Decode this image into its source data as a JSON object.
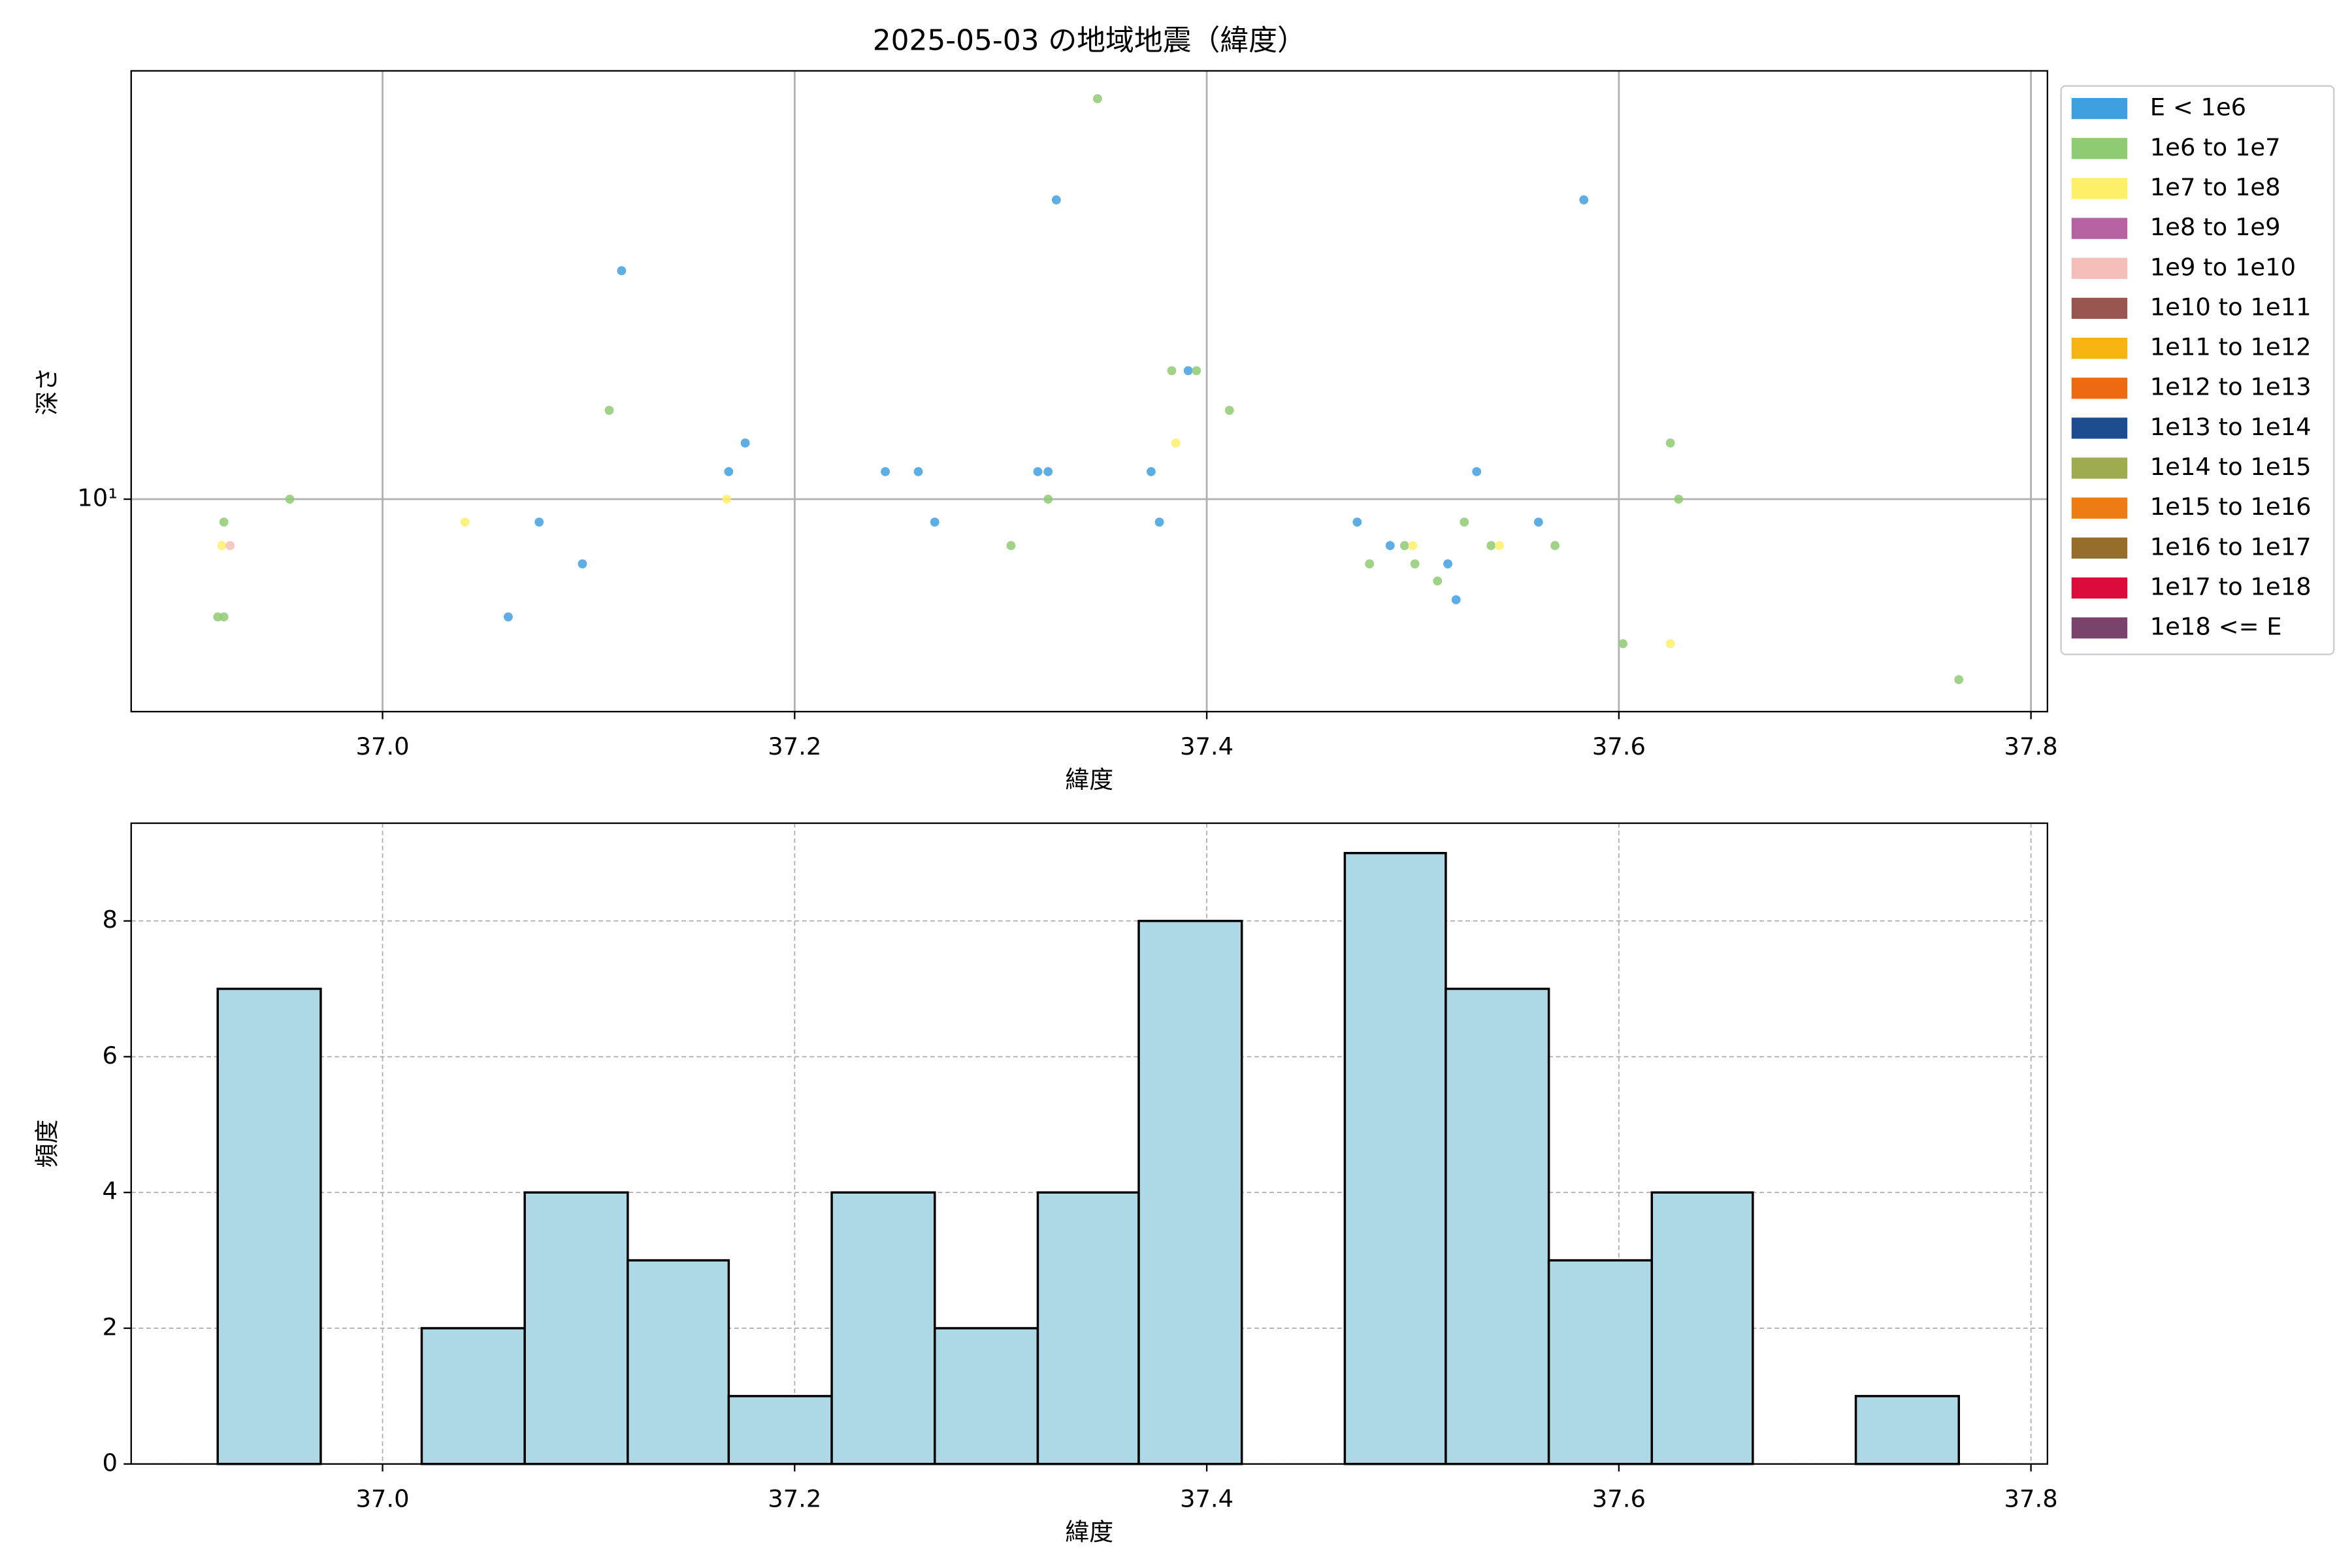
{
  "chart_data": [
    {
      "type": "scatter",
      "title": "2025-05-03 の地域地震（緯度）",
      "x_label": "緯度",
      "y_label": "深さ",
      "xlim": [
        36.878,
        37.808
      ],
      "xticks": [
        {
          "value": 37,
          "label": "37.0"
        },
        37.2,
        37.4,
        37.6,
        37.8
      ],
      "ylim": [
        3.4,
        88
      ],
      "yticks": [
        {
          "value": 10,
          "label": "10¹"
        }
      ],
      "yscale": "log",
      "grid": true,
      "grid_style": "solid",
      "series": [
        {
          "name": "E < 1e6",
          "color": "#3fa0e0",
          "x": [
            37.061,
            37.076,
            37.097,
            37.116,
            37.168,
            37.176,
            37.244,
            37.26,
            37.268,
            37.318,
            37.323,
            37.327,
            37.373,
            37.377,
            37.391,
            37.473,
            37.489,
            37.517,
            37.521,
            37.531,
            37.561,
            37.583
          ],
          "values": [
            5.5,
            8.9,
            7.2,
            31.9,
            11.5,
            13.3,
            11.5,
            11.5,
            8.9,
            11.5,
            11.5,
            45.7,
            11.5,
            8.9,
            19.2,
            8.9,
            7.9,
            7.2,
            6.0,
            11.5,
            8.9,
            45.7
          ]
        },
        {
          "name": "1e6 to 1e7",
          "color": "#8fcb72",
          "x": [
            36.92,
            36.923,
            36.923,
            36.955,
            37.11,
            37.305,
            37.323,
            37.347,
            37.383,
            37.395,
            37.411,
            37.479,
            37.496,
            37.501,
            37.512,
            37.525,
            37.538,
            37.569,
            37.602,
            37.625,
            37.629,
            37.765
          ],
          "values": [
            5.5,
            5.5,
            8.9,
            10,
            15.7,
            7.9,
            10,
            76.4,
            19.2,
            19.2,
            15.7,
            7.2,
            7.9,
            7.2,
            6.6,
            8.9,
            7.9,
            7.9,
            4.8,
            13.3,
            10,
            4.0
          ]
        },
        {
          "name": "1e7 to 1e8",
          "color": "#fff06a",
          "x": [
            36.922,
            37.04,
            37.167,
            37.385,
            37.5,
            37.542,
            37.625
          ],
          "values": [
            7.9,
            8.9,
            10,
            13.3,
            7.9,
            7.9,
            4.8
          ]
        },
        {
          "name": "1e8 to 1e9",
          "color": "#b763a3",
          "x": [],
          "values": []
        },
        {
          "name": "1e9 to 1e10",
          "color": "#f4bfb8",
          "x": [
            36.926
          ],
          "values": [
            7.9
          ]
        },
        {
          "name": "1e10 to 1e11",
          "color": "#98544f",
          "x": [],
          "values": []
        },
        {
          "name": "1e11 to 1e12",
          "color": "#f7b310",
          "x": [],
          "values": []
        },
        {
          "name": "1e12 to 1e13",
          "color": "#ee6a12",
          "x": [],
          "values": []
        },
        {
          "name": "1e13 to 1e14",
          "color": "#1d4c8f",
          "x": [],
          "values": []
        },
        {
          "name": "1e14 to 1e15",
          "color": "#9eac4f",
          "x": [],
          "values": []
        },
        {
          "name": "1e15 to 1e16",
          "color": "#ed7d12",
          "x": [],
          "values": []
        },
        {
          "name": "1e16 to 1e17",
          "color": "#976d2c",
          "x": [],
          "values": []
        },
        {
          "name": "1e17 to 1e18",
          "color": "#dd0a3c",
          "x": [],
          "values": []
        },
        {
          "name": "1e18 <= E",
          "color": "#7a436c",
          "x": [],
          "values": []
        }
      ]
    },
    {
      "type": "histogram",
      "x_label": "緯度",
      "y_label": "頻度",
      "xlim": [
        36.878,
        37.808
      ],
      "xticks": [
        {
          "value": 37,
          "label": "37.0"
        },
        37.2,
        37.4,
        37.6,
        37.8
      ],
      "ylim": [
        0,
        9.44
      ],
      "yticks": [
        0,
        2,
        4,
        6,
        8
      ],
      "grid": true,
      "grid_style": "dashed",
      "color": "#add8e6",
      "edgecolor": "#000000",
      "bins": [
        36.92,
        36.97,
        37.019,
        37.069,
        37.119,
        37.168,
        37.218,
        37.268,
        37.318,
        37.367,
        37.417,
        37.467,
        37.516,
        37.566,
        37.616,
        37.665,
        37.715,
        37.765
      ],
      "values": [
        7,
        0,
        2,
        4,
        3,
        1,
        4,
        2,
        4,
        8,
        0,
        9,
        7,
        3,
        4,
        0,
        1
      ]
    }
  ]
}
